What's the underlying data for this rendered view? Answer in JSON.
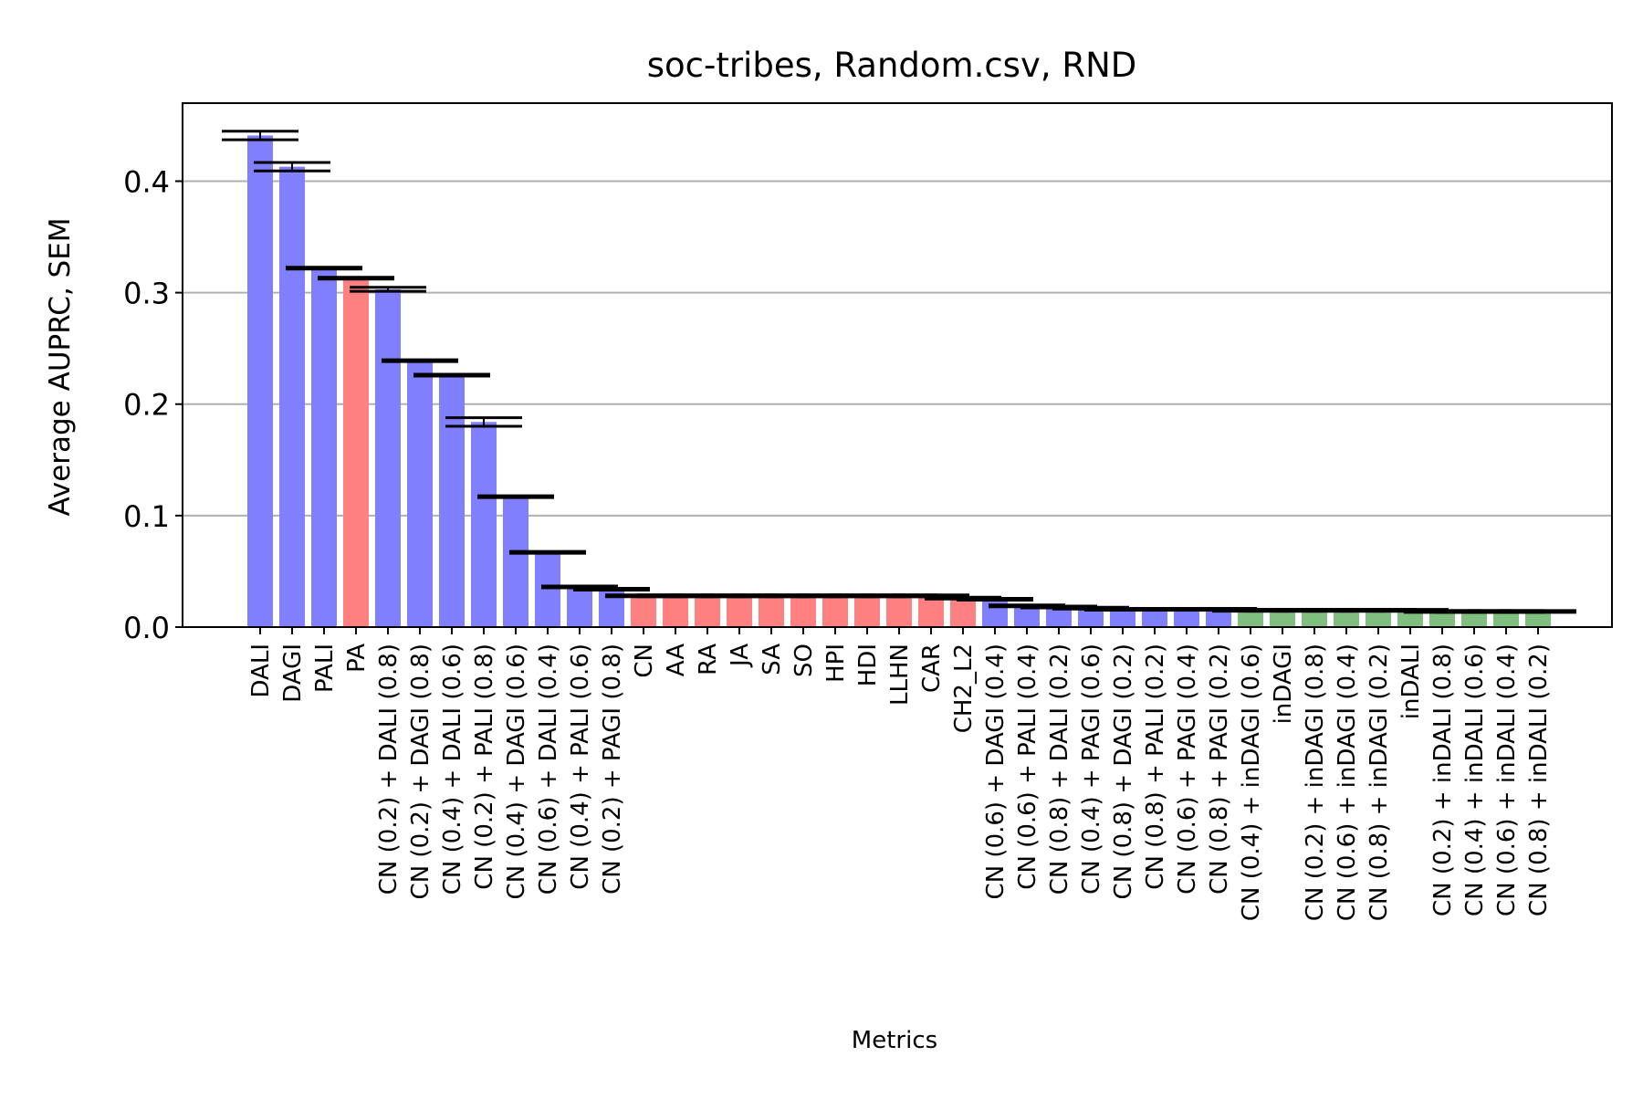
{
  "chart_data": {
    "type": "bar",
    "title": "soc-tribes, Random.csv, RND",
    "xlabel": "Metrics",
    "ylabel": "Average AUPRC, SEM",
    "ylim": [
      0,
      0.47
    ],
    "yticks": [
      0.0,
      0.1,
      0.2,
      0.3,
      0.4
    ],
    "ytick_labels": [
      "0.0",
      "0.1",
      "0.2",
      "0.3",
      "0.4"
    ],
    "grid": "horizontal",
    "colors": {
      "blue": "#8080ff",
      "red": "#ff8080",
      "green": "#80bf80"
    },
    "bars": [
      {
        "label": "DALI",
        "value": 0.441,
        "sem": 0.003,
        "color": "blue"
      },
      {
        "label": "DAGI",
        "value": 0.413,
        "sem": 0.003,
        "color": "blue"
      },
      {
        "label": "PALI",
        "value": 0.322,
        "sem": 0.0,
        "color": "blue"
      },
      {
        "label": "PA",
        "value": 0.313,
        "sem": 0.0,
        "color": "red"
      },
      {
        "label": "CN (0.2) + DALI (0.8)",
        "value": 0.303,
        "sem": 0.001,
        "color": "blue"
      },
      {
        "label": "CN (0.2) + DAGI (0.8)",
        "value": 0.239,
        "sem": 0.0,
        "color": "blue"
      },
      {
        "label": "CN (0.4) + DALI (0.6)",
        "value": 0.226,
        "sem": 0.0,
        "color": "blue"
      },
      {
        "label": "CN (0.2) + PALI (0.8)",
        "value": 0.184,
        "sem": 0.003,
        "color": "blue"
      },
      {
        "label": "CN (0.4) + DAGI (0.6)",
        "value": 0.117,
        "sem": 0.0,
        "color": "blue"
      },
      {
        "label": "CN (0.6) + DALI (0.4)",
        "value": 0.067,
        "sem": 0.0,
        "color": "blue"
      },
      {
        "label": "CN (0.4) + PALI (0.6)",
        "value": 0.036,
        "sem": 0.0,
        "color": "blue"
      },
      {
        "label": "CN (0.2) + PAGI (0.8)",
        "value": 0.034,
        "sem": 0.0,
        "color": "blue"
      },
      {
        "label": "CN",
        "value": 0.028,
        "sem": 0.0,
        "color": "red"
      },
      {
        "label": "AA",
        "value": 0.028,
        "sem": 0.0,
        "color": "red"
      },
      {
        "label": "RA",
        "value": 0.028,
        "sem": 0.0,
        "color": "red"
      },
      {
        "label": "JA",
        "value": 0.028,
        "sem": 0.0,
        "color": "red"
      },
      {
        "label": "SA",
        "value": 0.028,
        "sem": 0.0,
        "color": "red"
      },
      {
        "label": "SO",
        "value": 0.028,
        "sem": 0.0,
        "color": "red"
      },
      {
        "label": "HPI",
        "value": 0.028,
        "sem": 0.0,
        "color": "red"
      },
      {
        "label": "HDI",
        "value": 0.028,
        "sem": 0.0,
        "color": "red"
      },
      {
        "label": "LLHN",
        "value": 0.028,
        "sem": 0.0,
        "color": "red"
      },
      {
        "label": "CAR",
        "value": 0.028,
        "sem": 0.0,
        "color": "red"
      },
      {
        "label": "CH2_L2",
        "value": 0.026,
        "sem": 0.0,
        "color": "red"
      },
      {
        "label": "CN (0.6) + DAGI (0.4)",
        "value": 0.025,
        "sem": 0.0,
        "color": "blue"
      },
      {
        "label": "CN (0.6) + PALI (0.4)",
        "value": 0.019,
        "sem": 0.0,
        "color": "blue"
      },
      {
        "label": "CN (0.8) + DALI (0.2)",
        "value": 0.018,
        "sem": 0.0,
        "color": "blue"
      },
      {
        "label": "CN (0.4) + PAGI (0.6)",
        "value": 0.017,
        "sem": 0.0,
        "color": "blue"
      },
      {
        "label": "CN (0.8) + DAGI (0.2)",
        "value": 0.016,
        "sem": 0.0,
        "color": "blue"
      },
      {
        "label": "CN (0.8) + PALI (0.2)",
        "value": 0.016,
        "sem": 0.0,
        "color": "blue"
      },
      {
        "label": "CN (0.6) + PAGI (0.4)",
        "value": 0.016,
        "sem": 0.0,
        "color": "blue"
      },
      {
        "label": "CN (0.8) + PAGI (0.2)",
        "value": 0.016,
        "sem": 0.0,
        "color": "blue"
      },
      {
        "label": "CN (0.4) + inDAGI (0.6)",
        "value": 0.015,
        "sem": 0.0,
        "color": "green"
      },
      {
        "label": "inDAGI",
        "value": 0.015,
        "sem": 0.0,
        "color": "green"
      },
      {
        "label": "CN (0.2) + inDAGI (0.8)",
        "value": 0.015,
        "sem": 0.0,
        "color": "green"
      },
      {
        "label": "CN (0.6) + inDAGI (0.4)",
        "value": 0.015,
        "sem": 0.0,
        "color": "green"
      },
      {
        "label": "CN (0.8) + inDAGI (0.2)",
        "value": 0.015,
        "sem": 0.0,
        "color": "green"
      },
      {
        "label": "inDALI",
        "value": 0.015,
        "sem": 0.0,
        "color": "green"
      },
      {
        "label": "CN (0.2) + inDALI (0.8)",
        "value": 0.014,
        "sem": 0.0,
        "color": "green"
      },
      {
        "label": "CN (0.4) + inDALI (0.6)",
        "value": 0.014,
        "sem": 0.0,
        "color": "green"
      },
      {
        "label": "CN (0.6) + inDALI (0.4)",
        "value": 0.014,
        "sem": 0.0,
        "color": "green"
      },
      {
        "label": "CN (0.8) + inDALI (0.2)",
        "value": 0.014,
        "sem": 0.0,
        "color": "green"
      }
    ]
  }
}
